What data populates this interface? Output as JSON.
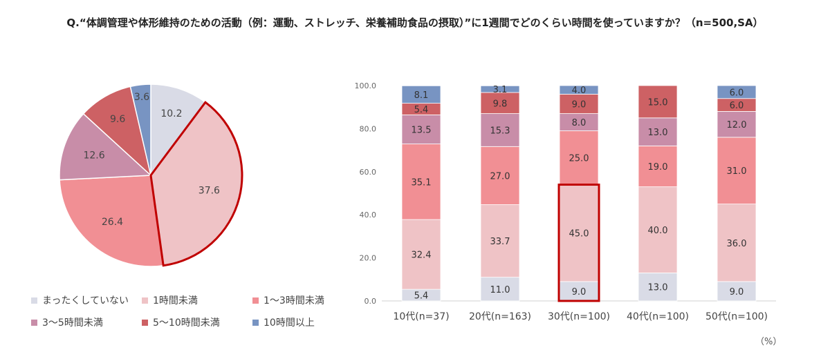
{
  "title": "Q.“体調管理や体形維持のための活動（例：運動、ストレッチ、栄養補助食品の摂取）”に1週間でどのくらい時間を使っていますか？（n=500,SA）",
  "unit": "（%）",
  "colors": {
    "まったくしていない": "#d9dbe6",
    "1時間未満": "#efc3c6",
    "1〜3時間未満": "#f18f94",
    "3〜5時間未満": "#c88da8",
    "5〜10時間未満": "#cd6164",
    "10時間以上": "#7894c2",
    "highlight": "#c00000"
  },
  "chart_data": [
    {
      "type": "pie",
      "labels": [
        "まったくしていない",
        "1時間未満",
        "1〜3時間未満",
        "3〜5時間未満",
        "5〜10時間未満",
        "10時間以上"
      ],
      "values": [
        10.2,
        37.6,
        26.4,
        12.6,
        9.6,
        3.6
      ],
      "highlighted": "1時間未満"
    },
    {
      "type": "bar",
      "stacked": true,
      "categories": [
        "10代(n=37)",
        "20代(n=163)",
        "30代(n=100)",
        "40代(n=100)",
        "50代(n=100)"
      ],
      "series": [
        {
          "name": "まったくしていない",
          "values": [
            5.4,
            11.0,
            9.0,
            13.0,
            9.0
          ]
        },
        {
          "name": "1時間未満",
          "values": [
            32.4,
            33.7,
            45.0,
            40.0,
            36.0
          ]
        },
        {
          "name": "1〜3時間未満",
          "values": [
            35.1,
            27.0,
            25.0,
            19.0,
            31.0
          ]
        },
        {
          "name": "3〜5時間未満",
          "values": [
            13.5,
            15.3,
            8.0,
            13.0,
            12.0
          ]
        },
        {
          "name": "5〜10時間未満",
          "values": [
            5.4,
            9.8,
            9.0,
            15.0,
            6.0
          ]
        },
        {
          "name": "10時間以上",
          "values": [
            8.1,
            3.1,
            4.0,
            0,
            6.0
          ]
        }
      ],
      "ylim": [
        0,
        100
      ],
      "yticks": [
        "0.0",
        "20.0",
        "40.0",
        "60.0",
        "80.0",
        "100.0"
      ],
      "highlighted": {
        "category": "30代(n=100)",
        "series": [
          "まったくしていない",
          "1時間未満"
        ]
      }
    }
  ]
}
